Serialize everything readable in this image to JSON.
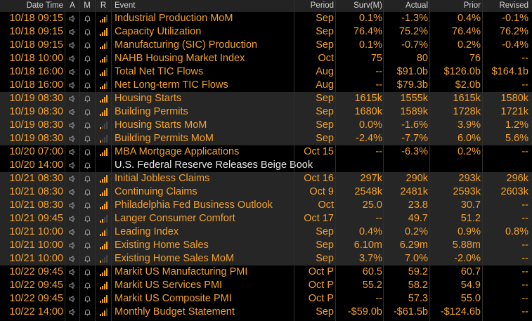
{
  "header": {
    "date_time": "Date Time",
    "a": "A",
    "m": "M",
    "r": "R",
    "event": "Event",
    "period": "Period",
    "surv": "Surv(M)",
    "actual": "Actual",
    "prior": "Prior",
    "revised": "Revised"
  },
  "colors": {
    "accent": "#f2a12e",
    "text_white": "#e8e8e8",
    "header_bg": "#232323",
    "shade_bg": "#262626"
  },
  "icons": {
    "alert": "speaker-icon",
    "mute": "bell-icon",
    "relevance": "relevance-bars-icon"
  },
  "rows": [
    {
      "date": "10/18",
      "time": "09:15",
      "event": "Industrial Production MoM",
      "period": "Sep",
      "surv": "0.1%",
      "actual": "-1.3%",
      "prior": "0.4%",
      "revised": "-0.1%",
      "relevance": 3,
      "shaded": false,
      "white": false
    },
    {
      "date": "10/18",
      "time": "09:15",
      "event": "Capacity Utilization",
      "period": "Sep",
      "surv": "76.4%",
      "actual": "75.2%",
      "prior": "76.4%",
      "revised": "76.2%",
      "relevance": 4,
      "shaded": false,
      "white": false
    },
    {
      "date": "10/18",
      "time": "09:15",
      "event": "Manufacturing (SIC) Production",
      "period": "Sep",
      "surv": "0.1%",
      "actual": "-0.7%",
      "prior": "0.2%",
      "revised": "-0.4%",
      "relevance": 3,
      "shaded": false,
      "white": false
    },
    {
      "date": "10/18",
      "time": "10:00",
      "event": "NAHB Housing Market Index",
      "period": "Oct",
      "surv": "75",
      "actual": "80",
      "prior": "76",
      "revised": "--",
      "relevance": 3,
      "shaded": false,
      "white": false
    },
    {
      "date": "10/18",
      "time": "16:00",
      "event": "Total Net TIC Flows",
      "period": "Aug",
      "surv": "--",
      "actual": "$91.0b",
      "prior": "$126.0b",
      "revised": "$164.1b",
      "relevance": 3,
      "shaded": false,
      "white": false
    },
    {
      "date": "10/18",
      "time": "16:00",
      "event": "Net Long-term TIC Flows",
      "period": "Aug",
      "surv": "--",
      "actual": "$79.3b",
      "prior": "$2.0b",
      "revised": "--",
      "relevance": 3,
      "shaded": false,
      "white": false
    },
    {
      "date": "10/19",
      "time": "08:30",
      "event": "Housing Starts",
      "period": "Sep",
      "surv": "1615k",
      "actual": "1555k",
      "prior": "1615k",
      "revised": "1580k",
      "relevance": 4,
      "shaded": true,
      "white": false
    },
    {
      "date": "10/19",
      "time": "08:30",
      "event": "Building Permits",
      "period": "Sep",
      "surv": "1680k",
      "actual": "1589k",
      "prior": "1728k",
      "revised": "1721k",
      "relevance": 4,
      "shaded": true,
      "white": false
    },
    {
      "date": "10/19",
      "time": "08:30",
      "event": "Housing Starts MoM",
      "period": "Sep",
      "surv": "0.0%",
      "actual": "-1.6%",
      "prior": "3.9%",
      "revised": "1.2%",
      "relevance": 1,
      "shaded": true,
      "white": false
    },
    {
      "date": "10/19",
      "time": "08:30",
      "event": "Building Permits MoM",
      "period": "Sep",
      "surv": "-2.4%",
      "actual": "-7.7%",
      "prior": "6.0%",
      "revised": "5.6%",
      "relevance": 1,
      "shaded": true,
      "white": false
    },
    {
      "date": "10/20",
      "time": "07:00",
      "event": "MBA Mortgage Applications",
      "period": "Oct 15",
      "surv": "--",
      "actual": "-6.3%",
      "prior": "0.2%",
      "revised": "--",
      "relevance": 4,
      "shaded": false,
      "white": false
    },
    {
      "date": "10/20",
      "time": "14:00",
      "event": "U.S. Federal Reserve Releases Beige Book",
      "period": "",
      "surv": "",
      "actual": "",
      "prior": "",
      "revised": "",
      "relevance": 0,
      "shaded": false,
      "white": true
    },
    {
      "date": "10/21",
      "time": "08:30",
      "event": "Initial Jobless Claims",
      "period": "Oct 16",
      "surv": "297k",
      "actual": "290k",
      "prior": "293k",
      "revised": "296k",
      "relevance": 4,
      "shaded": true,
      "white": false
    },
    {
      "date": "10/21",
      "time": "08:30",
      "event": "Continuing Claims",
      "period": "Oct 9",
      "surv": "2548k",
      "actual": "2481k",
      "prior": "2593k",
      "revised": "2603k",
      "relevance": 4,
      "shaded": true,
      "white": false
    },
    {
      "date": "10/21",
      "time": "08:30",
      "event": "Philadelphia Fed Business Outlook",
      "period": "Oct",
      "surv": "25.0",
      "actual": "23.8",
      "prior": "30.7",
      "revised": "--",
      "relevance": 4,
      "shaded": true,
      "white": false
    },
    {
      "date": "10/21",
      "time": "09:45",
      "event": "Langer Consumer Comfort",
      "period": "Oct 17",
      "surv": "--",
      "actual": "49.7",
      "prior": "51.2",
      "revised": "--",
      "relevance": 2,
      "shaded": true,
      "white": false
    },
    {
      "date": "10/21",
      "time": "10:00",
      "event": "Leading Index",
      "period": "Sep",
      "surv": "0.4%",
      "actual": "0.2%",
      "prior": "0.9%",
      "revised": "0.8%",
      "relevance": 3,
      "shaded": true,
      "white": false
    },
    {
      "date": "10/21",
      "time": "10:00",
      "event": "Existing Home Sales",
      "period": "Sep",
      "surv": "6.10m",
      "actual": "6.29m",
      "prior": "5.88m",
      "revised": "--",
      "relevance": 4,
      "shaded": true,
      "white": false
    },
    {
      "date": "10/21",
      "time": "10:00",
      "event": "Existing Home Sales MoM",
      "period": "Sep",
      "surv": "3.7%",
      "actual": "7.0%",
      "prior": "-2.0%",
      "revised": "--",
      "relevance": 1,
      "shaded": true,
      "white": false
    },
    {
      "date": "10/22",
      "time": "09:45",
      "event": "Markit US Manufacturing PMI",
      "period": "Oct P",
      "surv": "60.5",
      "actual": "59.2",
      "prior": "60.7",
      "revised": "--",
      "relevance": 4,
      "shaded": false,
      "white": false
    },
    {
      "date": "10/22",
      "time": "09:45",
      "event": "Markit US Services PMI",
      "period": "Oct P",
      "surv": "55.2",
      "actual": "58.2",
      "prior": "54.9",
      "revised": "--",
      "relevance": 4,
      "shaded": false,
      "white": false
    },
    {
      "date": "10/22",
      "time": "09:45",
      "event": "Markit US Composite PMI",
      "period": "Oct P",
      "surv": "--",
      "actual": "57.3",
      "prior": "55.0",
      "revised": "--",
      "relevance": 4,
      "shaded": false,
      "white": false
    },
    {
      "date": "10/22",
      "time": "14:00",
      "event": "Monthly Budget Statement",
      "period": "Sep",
      "surv": "-$59.0b",
      "actual": "-$61.5b",
      "prior": "-$124.6b",
      "revised": "--",
      "relevance": 3,
      "shaded": false,
      "white": false
    }
  ]
}
